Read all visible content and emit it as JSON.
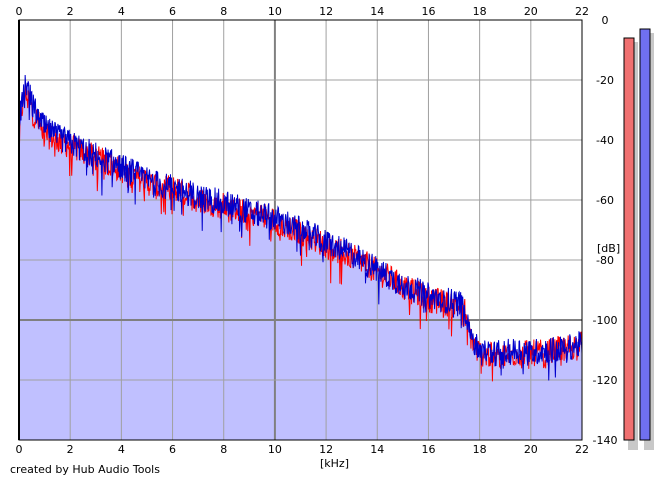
{
  "credit": "created by Hub Audio Tools",
  "chart_data": {
    "type": "area",
    "title": "",
    "xlabel": "[kHz]",
    "ylabel": "[dB]",
    "xlim": [
      0,
      22
    ],
    "ylim": [
      -140,
      0
    ],
    "x_ticks": [
      "0",
      "2",
      "4",
      "6",
      "8",
      "10",
      "12",
      "14",
      "16",
      "18",
      "20",
      "22"
    ],
    "y_ticks": [
      "0",
      "-20",
      "-40",
      "-60",
      "-80",
      "-100",
      "-120",
      "-140"
    ],
    "grid": true,
    "series": [
      {
        "color": "#ff0000",
        "x": [
          0,
          0.1,
          0.2,
          0.3,
          0.5,
          0.8,
          1.0,
          1.5,
          2.0,
          2.5,
          3.0,
          3.5,
          4.0,
          4.5,
          5.0,
          5.5,
          6.0,
          6.5,
          7.0,
          7.5,
          8.0,
          8.5,
          9.0,
          9.5,
          10.0,
          10.5,
          11.0,
          11.5,
          12.0,
          12.5,
          13.0,
          13.5,
          14.0,
          14.5,
          15.0,
          15.5,
          16.0,
          16.5,
          17.0,
          17.4,
          17.6,
          17.8,
          18.0,
          18.5,
          19.0,
          19.5,
          20.0,
          20.5,
          21.0,
          21.5,
          22.0
        ],
        "y": [
          -38,
          -30,
          -26,
          -24,
          -30,
          -35,
          -38,
          -40,
          -42,
          -44,
          -46,
          -48,
          -50,
          -52,
          -54,
          -56,
          -56,
          -58,
          -60,
          -61,
          -62,
          -63,
          -64,
          -65,
          -67,
          -69,
          -71,
          -73,
          -75,
          -77,
          -79,
          -81,
          -84,
          -86,
          -89,
          -91,
          -93,
          -94,
          -95,
          -96,
          -104,
          -109,
          -111,
          -112,
          -112,
          -111,
          -111,
          -111,
          -110,
          -109,
          -108
        ]
      },
      {
        "color": "#0000cc",
        "x": [
          0,
          0.1,
          0.2,
          0.3,
          0.5,
          0.8,
          1.0,
          1.5,
          2.0,
          2.5,
          3.0,
          3.5,
          4.0,
          4.5,
          5.0,
          5.5,
          6.0,
          6.5,
          7.0,
          7.5,
          8.0,
          8.5,
          9.0,
          9.5,
          10.0,
          10.5,
          11.0,
          11.5,
          12.0,
          12.5,
          13.0,
          13.5,
          14.0,
          14.5,
          15.0,
          15.5,
          16.0,
          16.5,
          17.0,
          17.4,
          17.6,
          17.8,
          18.0,
          18.5,
          19.0,
          19.5,
          20.0,
          20.5,
          21.0,
          21.5,
          22.0
        ],
        "y": [
          -36,
          -28,
          -22,
          -21,
          -28,
          -33,
          -36,
          -39,
          -41,
          -43,
          -45,
          -47,
          -49,
          -51,
          -53,
          -55,
          -56,
          -57,
          -59,
          -60,
          -61,
          -62,
          -64,
          -65,
          -66,
          -68,
          -70,
          -72,
          -74,
          -76,
          -78,
          -81,
          -83,
          -86,
          -88,
          -90,
          -92,
          -93,
          -94,
          -95,
          -102,
          -108,
          -110,
          -111,
          -111,
          -110,
          -111,
          -110,
          -110,
          -109,
          -108
        ]
      }
    ],
    "fill_color": "#c0c0ff",
    "meters": [
      {
        "color": "#f07070",
        "level_db": -6
      },
      {
        "color": "#7070f0",
        "level_db": -3
      }
    ]
  }
}
